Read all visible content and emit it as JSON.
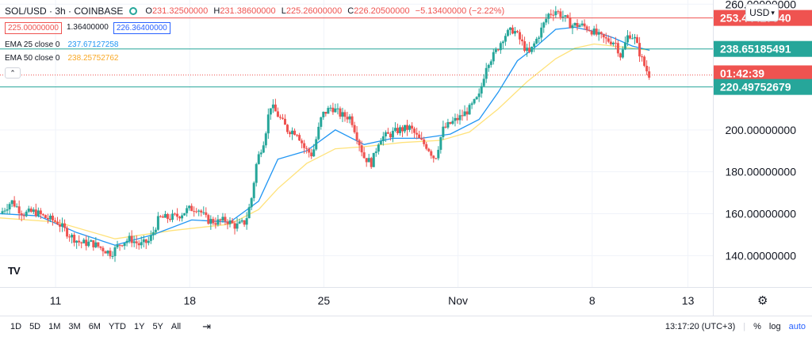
{
  "header": {
    "symbol": "SOL/USD · 3h · COINBASE",
    "ohlc": [
      {
        "label": "O",
        "value": "231.32500000"
      },
      {
        "label": "H",
        "value": "231.38600000"
      },
      {
        "label": "L",
        "value": "225.26000000"
      },
      {
        "label": "C",
        "value": "226.20500000"
      },
      {
        "label": "",
        "value": "−5.13400000 (−2.22%)"
      }
    ],
    "sell_price": "225.00000000",
    "spread": "1.36400000",
    "buy_price": "226.36400000",
    "ema25_label": "EMA 25 close 0",
    "ema25_value": "237.67127258",
    "ema50_label": "EMA 50 close 0",
    "ema50_value": "238.25752762",
    "collapse_glyph": "⌃"
  },
  "currency_button": "USD",
  "logo_text": "TV",
  "colors": {
    "up": "#26a69a",
    "down": "#ef5350",
    "ema25": "#2196f3",
    "ema50": "#ffe27a",
    "resistance": "#ef5350",
    "support": "#26a69a"
  },
  "bottom_bar": {
    "ranges": [
      "1D",
      "5D",
      "1M",
      "3M",
      "6M",
      "YTD",
      "1Y",
      "5Y",
      "All"
    ],
    "time": "13:17:20 (UTC+3)",
    "percent": "%",
    "log": "log",
    "auto": "auto"
  },
  "chart_data": {
    "type": "candlestick",
    "ylim": [
      125,
      262
    ],
    "y_ticks": [
      {
        "value": 140,
        "label": "140.00000000"
      },
      {
        "value": 160,
        "label": "160.00000000"
      },
      {
        "value": 180,
        "label": "180.00000000"
      },
      {
        "value": 200,
        "label": "200.00000000"
      },
      {
        "value": 260,
        "label": "260.00000000"
      }
    ],
    "x_ticks": [
      {
        "label": "11",
        "t": 6.9
      },
      {
        "label": "18",
        "t": 13.9
      },
      {
        "label": "25",
        "t": 20.9
      },
      {
        "label": "Nov",
        "t": 27.9
      },
      {
        "label": "8",
        "t": 34.9
      },
      {
        "label": "13",
        "t": 39.9
      }
    ],
    "x_range_days": [
      4.0,
      41.2
    ],
    "price_tags": [
      {
        "label": "253.44427040",
        "value": 253.44,
        "color": "#ef5350",
        "kind": "line"
      },
      {
        "label": "238.65185491",
        "value": 238.65,
        "color": "#26a69a",
        "kind": "line"
      },
      {
        "label": "01:42:39",
        "value": 227.0,
        "color": "#ef5350",
        "kind": "countdown"
      },
      {
        "label": "220.49752679",
        "value": 220.5,
        "color": "#26a69a",
        "kind": "line"
      }
    ],
    "resistance_line": 253.44,
    "support_lines": [
      238.65,
      220.5
    ],
    "last_price": 226.2,
    "close_path": [
      [
        4.0,
        160
      ],
      [
        4.6,
        166
      ],
      [
        5.2,
        160
      ],
      [
        5.8,
        161
      ],
      [
        6.4,
        158
      ],
      [
        7.0,
        156
      ],
      [
        7.6,
        150
      ],
      [
        8.2,
        146
      ],
      [
        8.8,
        146
      ],
      [
        9.4,
        143
      ],
      [
        9.8,
        141
      ],
      [
        10.3,
        146
      ],
      [
        10.8,
        148
      ],
      [
        11.3,
        145
      ],
      [
        11.8,
        147
      ],
      [
        12.3,
        158
      ],
      [
        12.8,
        158
      ],
      [
        13.3,
        159
      ],
      [
        13.8,
        162
      ],
      [
        14.3,
        163
      ],
      [
        14.8,
        157
      ],
      [
        15.3,
        156
      ],
      [
        15.8,
        157
      ],
      [
        16.3,
        154
      ],
      [
        16.8,
        156
      ],
      [
        17.1,
        166
      ],
      [
        17.4,
        185
      ],
      [
        17.8,
        196
      ],
      [
        18.1,
        212
      ],
      [
        18.5,
        207
      ],
      [
        19.0,
        200
      ],
      [
        19.5,
        199
      ],
      [
        19.9,
        191
      ],
      [
        20.3,
        188
      ],
      [
        20.8,
        207
      ],
      [
        21.3,
        211
      ],
      [
        21.8,
        207
      ],
      [
        22.3,
        206
      ],
      [
        22.7,
        195
      ],
      [
        23.0,
        187
      ],
      [
        23.4,
        184
      ],
      [
        23.8,
        196
      ],
      [
        24.4,
        198
      ],
      [
        24.8,
        200
      ],
      [
        25.4,
        201
      ],
      [
        25.9,
        195
      ],
      [
        26.3,
        192
      ],
      [
        26.7,
        186
      ],
      [
        27.1,
        200
      ],
      [
        27.5,
        203
      ],
      [
        28.0,
        206
      ],
      [
        28.5,
        210
      ],
      [
        29.0,
        216
      ],
      [
        29.4,
        232
      ],
      [
        29.8,
        236
      ],
      [
        30.3,
        245
      ],
      [
        30.8,
        248
      ],
      [
        31.2,
        242
      ],
      [
        31.6,
        236
      ],
      [
        32.1,
        245
      ],
      [
        32.6,
        255
      ],
      [
        33.0,
        257
      ],
      [
        33.4,
        254
      ],
      [
        33.8,
        250
      ],
      [
        34.3,
        250
      ],
      [
        34.8,
        248
      ],
      [
        35.2,
        245
      ],
      [
        35.6,
        243
      ],
      [
        36.1,
        242
      ],
      [
        36.4,
        235
      ],
      [
        36.8,
        246
      ],
      [
        37.1,
        244
      ],
      [
        37.4,
        236
      ],
      [
        37.7,
        229
      ],
      [
        37.9,
        226
      ]
    ],
    "ema25_path": [
      [
        4.0,
        160
      ],
      [
        6.0,
        159
      ],
      [
        8.0,
        151
      ],
      [
        10.0,
        145
      ],
      [
        12.0,
        150
      ],
      [
        14.0,
        157
      ],
      [
        16.0,
        156
      ],
      [
        17.5,
        166
      ],
      [
        18.5,
        186
      ],
      [
        20.0,
        190
      ],
      [
        21.5,
        200
      ],
      [
        23.0,
        193
      ],
      [
        24.5,
        196
      ],
      [
        26.0,
        196
      ],
      [
        27.5,
        198
      ],
      [
        29.0,
        205
      ],
      [
        30.0,
        218
      ],
      [
        31.0,
        233
      ],
      [
        32.0,
        240
      ],
      [
        33.0,
        248
      ],
      [
        34.0,
        249
      ],
      [
        35.0,
        247
      ],
      [
        36.0,
        244
      ],
      [
        37.0,
        240
      ],
      [
        37.9,
        238
      ]
    ],
    "ema50_path": [
      [
        4.0,
        158
      ],
      [
        7.0,
        156
      ],
      [
        10.0,
        148
      ],
      [
        13.0,
        152
      ],
      [
        16.0,
        155
      ],
      [
        17.5,
        162
      ],
      [
        18.5,
        172
      ],
      [
        20.0,
        184
      ],
      [
        21.5,
        191
      ],
      [
        23.0,
        192
      ],
      [
        25.0,
        194
      ],
      [
        27.0,
        195
      ],
      [
        28.5,
        199
      ],
      [
        30.0,
        210
      ],
      [
        31.5,
        223
      ],
      [
        33.0,
        234
      ],
      [
        34.0,
        239
      ],
      [
        35.0,
        241
      ],
      [
        36.0,
        240
      ],
      [
        37.0,
        239
      ],
      [
        37.9,
        238
      ]
    ]
  }
}
